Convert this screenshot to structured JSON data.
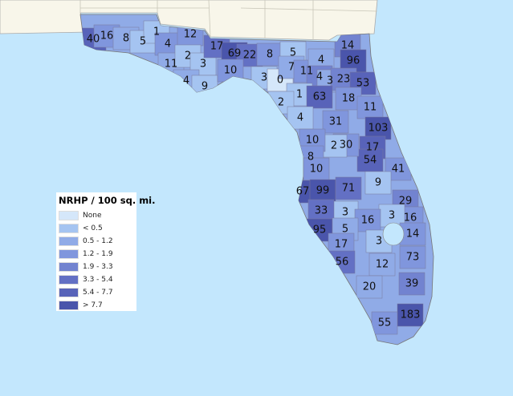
{
  "legend": {
    "title": "NRHP / 100 sq. mi.",
    "classes": [
      {
        "label": "None",
        "color": "#d5e7fa"
      },
      {
        "label": "< 0.5",
        "color": "#a5c4f1"
      },
      {
        "label": "0.5 - 1.2",
        "color": "#90abe7"
      },
      {
        "label": "1.2 - 1.9",
        "color": "#8096dd"
      },
      {
        "label": "1.9 - 3.3",
        "color": "#7283d0"
      },
      {
        "label": "3.3 - 5.4",
        "color": "#6370c4"
      },
      {
        "label": "5.4 - 7.7",
        "color": "#5863b9"
      },
      {
        "label": "> 7.7",
        "color": "#4a55ab"
      }
    ]
  },
  "colors": {
    "water": "#c3e7fd",
    "neighbor_land": "#f8f6ea",
    "border": "#888888"
  },
  "counties": [
    {
      "value": "40",
      "class": 6
    },
    {
      "value": "16",
      "class": 3
    },
    {
      "value": "8",
      "class": 2
    },
    {
      "value": "5",
      "class": 1
    },
    {
      "value": "1",
      "class": 1
    },
    {
      "value": "4",
      "class": 3
    },
    {
      "value": "12",
      "class": 3
    },
    {
      "value": "11",
      "class": 2
    },
    {
      "value": "2",
      "class": 1
    },
    {
      "value": "3",
      "class": 1
    },
    {
      "value": "4",
      "class": 2
    },
    {
      "value": "9",
      "class": 1
    },
    {
      "value": "17",
      "class": 5
    },
    {
      "value": "69",
      "class": 7
    },
    {
      "value": "22",
      "class": 5
    },
    {
      "value": "8",
      "class": 3
    },
    {
      "value": "10",
      "class": 3
    },
    {
      "value": "5",
      "class": 1
    },
    {
      "value": "3",
      "class": 1
    },
    {
      "value": "0",
      "class": 0
    },
    {
      "value": "7",
      "class": 2
    },
    {
      "value": "11",
      "class": 3
    },
    {
      "value": "4",
      "class": 2
    },
    {
      "value": "4",
      "class": 4
    },
    {
      "value": "3",
      "class": 2
    },
    {
      "value": "14",
      "class": 4
    },
    {
      "value": "96",
      "class": 7
    },
    {
      "value": "23",
      "class": 4
    },
    {
      "value": "53",
      "class": 6
    },
    {
      "value": "1",
      "class": 1
    },
    {
      "value": "63",
      "class": 6
    },
    {
      "value": "18",
      "class": 3
    },
    {
      "value": "2",
      "class": 1
    },
    {
      "value": "11",
      "class": 3
    },
    {
      "value": "4",
      "class": 1
    },
    {
      "value": "31",
      "class": 3
    },
    {
      "value": "103",
      "class": 7
    },
    {
      "value": "17",
      "class": 6
    },
    {
      "value": "54",
      "class": 6
    },
    {
      "value": "30",
      "class": 3
    },
    {
      "value": "2",
      "class": 1
    },
    {
      "value": "10",
      "class": 3
    },
    {
      "value": "8",
      "class": 3
    },
    {
      "value": "10",
      "class": 3
    },
    {
      "value": "41",
      "class": 3
    },
    {
      "value": "67",
      "class": 7
    },
    {
      "value": "99",
      "class": 7
    },
    {
      "value": "71",
      "class": 5
    },
    {
      "value": "9",
      "class": 1
    },
    {
      "value": "29",
      "class": 4
    },
    {
      "value": "16",
      "class": 3
    },
    {
      "value": "3",
      "class": 1
    },
    {
      "value": "3",
      "class": 1
    },
    {
      "value": "16",
      "class": 3
    },
    {
      "value": "33",
      "class": 5
    },
    {
      "value": "95",
      "class": 7
    },
    {
      "value": "5",
      "class": 2
    },
    {
      "value": "17",
      "class": 3
    },
    {
      "value": "3",
      "class": 1
    },
    {
      "value": "14",
      "class": 3
    },
    {
      "value": "56",
      "class": 5
    },
    {
      "value": "12",
      "class": 2
    },
    {
      "value": "73",
      "class": 3
    },
    {
      "value": "20",
      "class": 2
    },
    {
      "value": "39",
      "class": 4
    },
    {
      "value": "183",
      "class": 7
    },
    {
      "value": "55",
      "class": 3
    }
  ]
}
